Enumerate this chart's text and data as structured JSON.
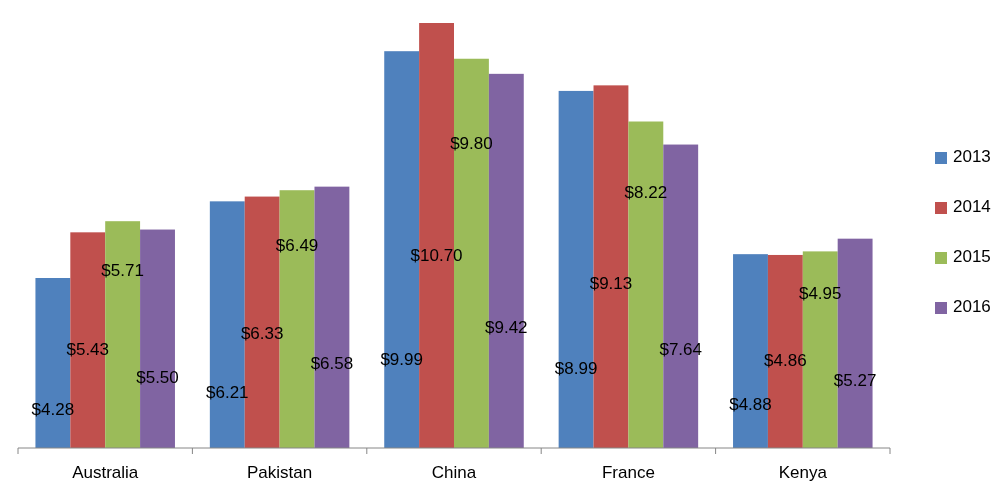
{
  "chart_data": {
    "type": "bar",
    "categories": [
      "Australia",
      "Pakistan",
      "China",
      "France",
      "Kenya"
    ],
    "series": [
      {
        "name": "2013",
        "color": "#4f81bd",
        "values": [
          4.28,
          6.21,
          9.99,
          8.99,
          4.88
        ],
        "value_labels": [
          "$4.28",
          "$6.21",
          "$9.99",
          "$8.99",
          "$4.88"
        ]
      },
      {
        "name": "2014",
        "color": "#c0504d",
        "values": [
          5.43,
          6.33,
          10.7,
          9.13,
          4.86
        ],
        "value_labels": [
          "$5.43",
          "$6.33",
          "$10.70",
          "$9.13",
          "$4.86"
        ]
      },
      {
        "name": "2015",
        "color": "#9bbb59",
        "values": [
          5.71,
          6.49,
          9.8,
          8.22,
          4.95
        ],
        "value_labels": [
          "$5.71",
          "$6.49",
          "$9.80",
          "$8.22",
          "$4.95"
        ]
      },
      {
        "name": "2016",
        "color": "#8064a2",
        "values": [
          5.5,
          6.58,
          9.42,
          7.64,
          5.27
        ],
        "value_labels": [
          "$5.50",
          "$6.58",
          "$9.42",
          "$7.64",
          "$5.27"
        ]
      }
    ],
    "legend": "right"
  }
}
